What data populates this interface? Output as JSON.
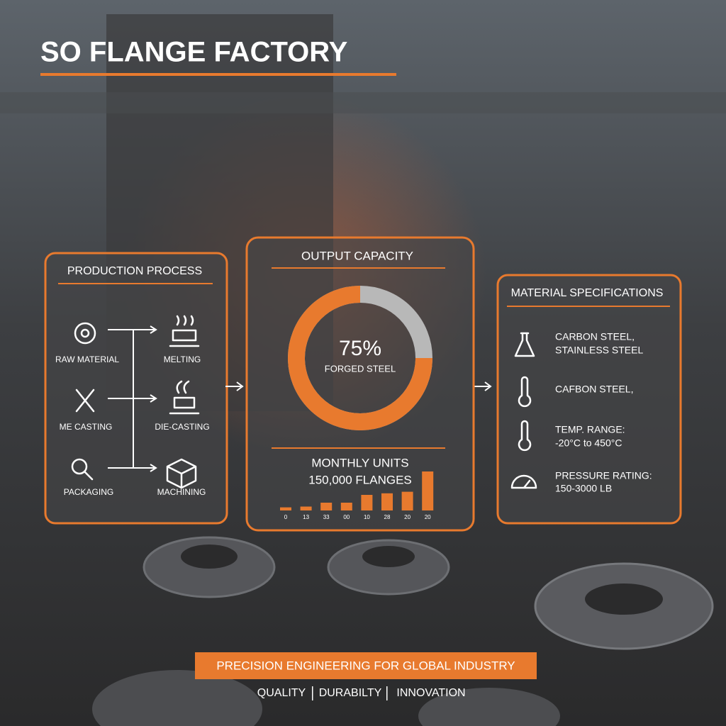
{
  "header": {
    "title": "SO FLANGE FACTORY"
  },
  "production": {
    "title": "PRODUCTION PROCESS",
    "steps": [
      "RAW MATERIAL",
      "MELTING",
      "ME CASTING",
      "DIE-CASTING",
      "PACKAGING",
      "MACHINING"
    ]
  },
  "output": {
    "title": "OUTPUT CAPACITY",
    "donut": {
      "value": 75,
      "label": "75%",
      "caption": "FORGED STEEL"
    },
    "monthly": {
      "title": "MONTHLY UNITS",
      "total": "150,000 FLANGES",
      "bars": [
        4,
        5,
        10,
        10,
        20,
        22,
        24,
        50
      ],
      "bar_labels": [
        "0",
        "13",
        "33",
        "00",
        "10",
        "28",
        "20",
        "20"
      ]
    }
  },
  "materials": {
    "title": "MATERIAL SPECIFICATIONS",
    "items": [
      {
        "lines": [
          "CARBON STEEL,",
          "STAINLESS STEEL"
        ]
      },
      {
        "lines": [
          "CAFBON STEEL,"
        ]
      },
      {
        "lines": [
          "TEMP. RANGE:",
          "-20°C to 450°C"
        ]
      },
      {
        "lines": [
          "PRESSURE RATING:",
          "150-3000 LB"
        ]
      }
    ]
  },
  "footer": {
    "banner": "PRECISION ENGINEERING FOR GLOBAL INDUSTRY",
    "tags": [
      "QUALITY",
      "DURABILTY",
      "INNOVATION"
    ]
  }
}
